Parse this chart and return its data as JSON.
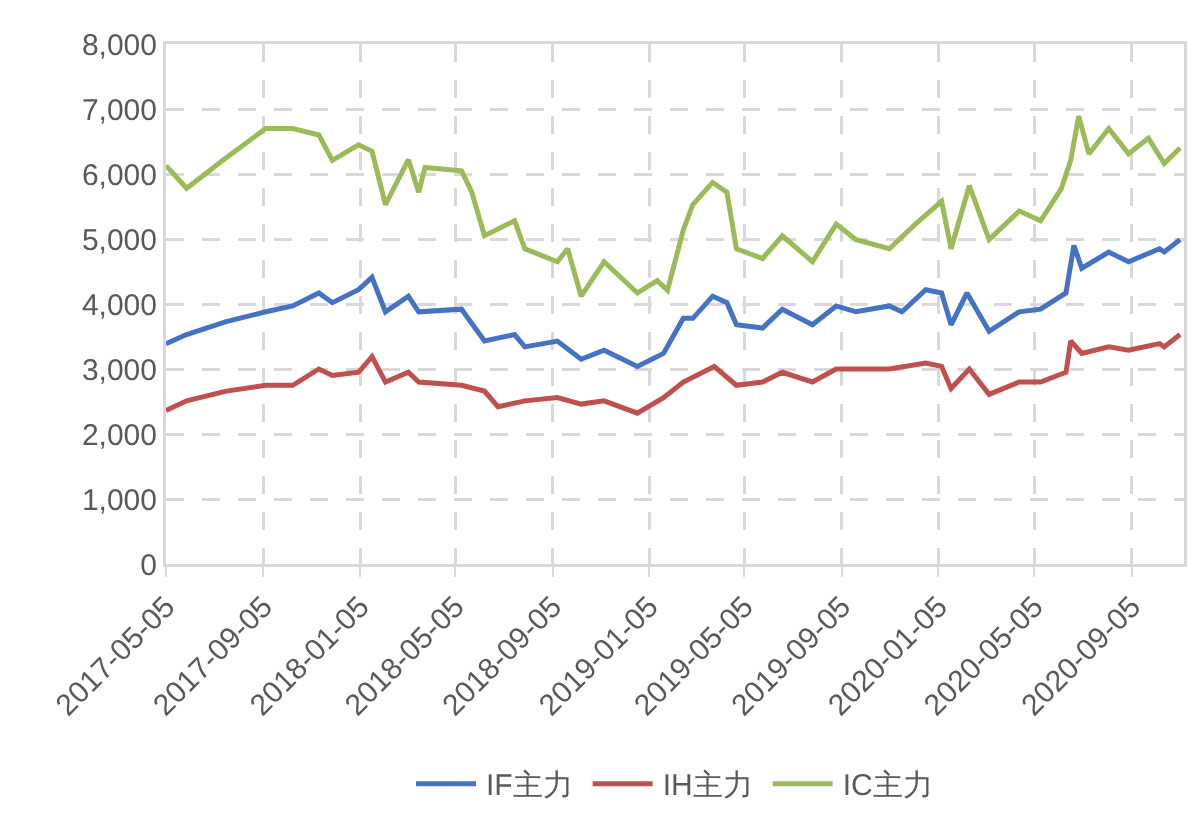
{
  "chart_data": {
    "type": "line",
    "xlim": [
      "2017-05-05",
      "2020-11-10"
    ],
    "xticks": [
      "2017-05-05",
      "2017-09-05",
      "2018-01-05",
      "2018-05-05",
      "2018-09-05",
      "2019-01-05",
      "2019-05-05",
      "2019-09-05",
      "2020-01-05",
      "2020-05-05",
      "2020-09-05"
    ],
    "ylim": [
      0,
      8000
    ],
    "yticks": [
      {
        "value": 0,
        "label": "0"
      },
      {
        "value": 1000,
        "label": "1,000"
      },
      {
        "value": 2000,
        "label": "2,000"
      },
      {
        "value": 3000,
        "label": "3,000"
      },
      {
        "value": 4000,
        "label": "4,000"
      },
      {
        "value": 5000,
        "label": "5,000"
      },
      {
        "value": 6000,
        "label": "6,000"
      },
      {
        "value": 7000,
        "label": "7,000"
      },
      {
        "value": 8000,
        "label": "8,000"
      }
    ],
    "grid": true,
    "legend": "bottom",
    "line_style": "solid",
    "marker": "none",
    "series": [
      {
        "name": "IF主力",
        "color": "#4472c4",
        "x": [
          "2017-05-05",
          "2017-05-31",
          "2017-07-20",
          "2017-09-08",
          "2017-10-12",
          "2017-11-14",
          "2017-12-01",
          "2018-01-03",
          "2018-01-20",
          "2018-02-06",
          "2018-03-07",
          "2018-03-20",
          "2018-05-13",
          "2018-06-11",
          "2018-07-19",
          "2018-08-01",
          "2018-09-11",
          "2018-10-11",
          "2018-11-09",
          "2018-12-21",
          "2019-01-23",
          "2019-02-17",
          "2019-03-01",
          "2019-03-26",
          "2019-04-13",
          "2019-04-25",
          "2019-05-28",
          "2019-06-22",
          "2019-07-30",
          "2019-08-29",
          "2019-09-23",
          "2019-11-04",
          "2019-11-20",
          "2019-12-20",
          "2020-01-09",
          "2020-01-21",
          "2020-02-10",
          "2020-03-09",
          "2020-04-16",
          "2020-05-13",
          "2020-06-14",
          "2020-06-24",
          "2020-07-04",
          "2020-08-07",
          "2020-09-01",
          "2020-10-10",
          "2020-10-16",
          "2020-11-05"
        ],
        "values": [
          3390,
          3530,
          3730,
          3880,
          3970,
          4170,
          4020,
          4220,
          4410,
          3880,
          4120,
          3880,
          3920,
          3430,
          3530,
          3340,
          3430,
          3150,
          3290,
          3040,
          3240,
          3780,
          3780,
          4120,
          4020,
          3680,
          3630,
          3920,
          3680,
          3970,
          3880,
          3970,
          3880,
          4220,
          4170,
          3680,
          4170,
          3580,
          3880,
          3920,
          4170,
          4900,
          4550,
          4800,
          4650,
          4850,
          4800,
          4990
        ]
      },
      {
        "name": "IH主力",
        "color": "#c0504d",
        "x": [
          "2017-05-05",
          "2017-05-31",
          "2017-07-20",
          "2017-09-08",
          "2017-10-12",
          "2017-11-14",
          "2017-12-01",
          "2018-01-03",
          "2018-01-20",
          "2018-02-06",
          "2018-03-07",
          "2018-03-20",
          "2018-05-13",
          "2018-06-11",
          "2018-06-28",
          "2018-08-01",
          "2018-09-11",
          "2018-10-11",
          "2018-11-09",
          "2018-12-21",
          "2019-01-23",
          "2019-02-17",
          "2019-03-28",
          "2019-04-25",
          "2019-05-28",
          "2019-06-22",
          "2019-07-30",
          "2019-08-29",
          "2019-11-04",
          "2019-12-20",
          "2020-01-09",
          "2020-01-21",
          "2020-02-13",
          "2020-03-09",
          "2020-04-16",
          "2020-05-13",
          "2020-06-14",
          "2020-06-20",
          "2020-07-04",
          "2020-08-07",
          "2020-09-01",
          "2020-10-10",
          "2020-10-16",
          "2020-11-05"
        ],
        "values": [
          2360,
          2510,
          2660,
          2750,
          2750,
          3000,
          2900,
          2950,
          3190,
          2800,
          2950,
          2800,
          2750,
          2660,
          2420,
          2510,
          2560,
          2460,
          2510,
          2320,
          2560,
          2800,
          3040,
          2750,
          2800,
          2950,
          2800,
          3000,
          3000,
          3090,
          3040,
          2700,
          3000,
          2610,
          2800,
          2800,
          2950,
          3430,
          3240,
          3340,
          3290,
          3390,
          3340,
          3530
        ]
      },
      {
        "name": "IC主力",
        "color": "#9bbb59",
        "x": [
          "2017-05-05",
          "2017-05-31",
          "2017-07-20",
          "2017-09-08",
          "2017-10-12",
          "2017-11-14",
          "2017-12-01",
          "2018-01-03",
          "2018-01-20",
          "2018-02-06",
          "2018-03-07",
          "2018-03-20",
          "2018-03-28",
          "2018-05-13",
          "2018-05-26",
          "2018-06-11",
          "2018-07-19",
          "2018-08-01",
          "2018-09-11",
          "2018-09-24",
          "2018-10-11",
          "2018-11-09",
          "2018-12-21",
          "2019-01-15",
          "2019-01-28",
          "2019-02-17",
          "2019-03-01",
          "2019-03-26",
          "2019-04-13",
          "2019-04-25",
          "2019-05-28",
          "2019-06-22",
          "2019-07-30",
          "2019-08-29",
          "2019-09-23",
          "2019-11-04",
          "2019-12-07",
          "2020-01-09",
          "2020-01-21",
          "2020-02-13",
          "2020-03-09",
          "2020-04-16",
          "2020-05-13",
          "2020-06-08",
          "2020-06-20",
          "2020-06-30",
          "2020-07-13",
          "2020-08-07",
          "2020-09-01",
          "2020-09-26",
          "2020-10-16",
          "2020-11-05"
        ],
        "values": [
          6130,
          5780,
          6250,
          6700,
          6700,
          6600,
          6210,
          6450,
          6350,
          5530,
          6220,
          5720,
          6100,
          6050,
          5720,
          5050,
          5280,
          4850,
          4650,
          4850,
          4120,
          4650,
          4170,
          4360,
          4210,
          5140,
          5530,
          5870,
          5720,
          4850,
          4700,
          5050,
          4650,
          5230,
          4990,
          4850,
          5230,
          5580,
          4850,
          5820,
          4990,
          5430,
          5280,
          5770,
          6210,
          6890,
          6310,
          6700,
          6310,
          6550,
          6160,
          6400
        ]
      }
    ]
  }
}
